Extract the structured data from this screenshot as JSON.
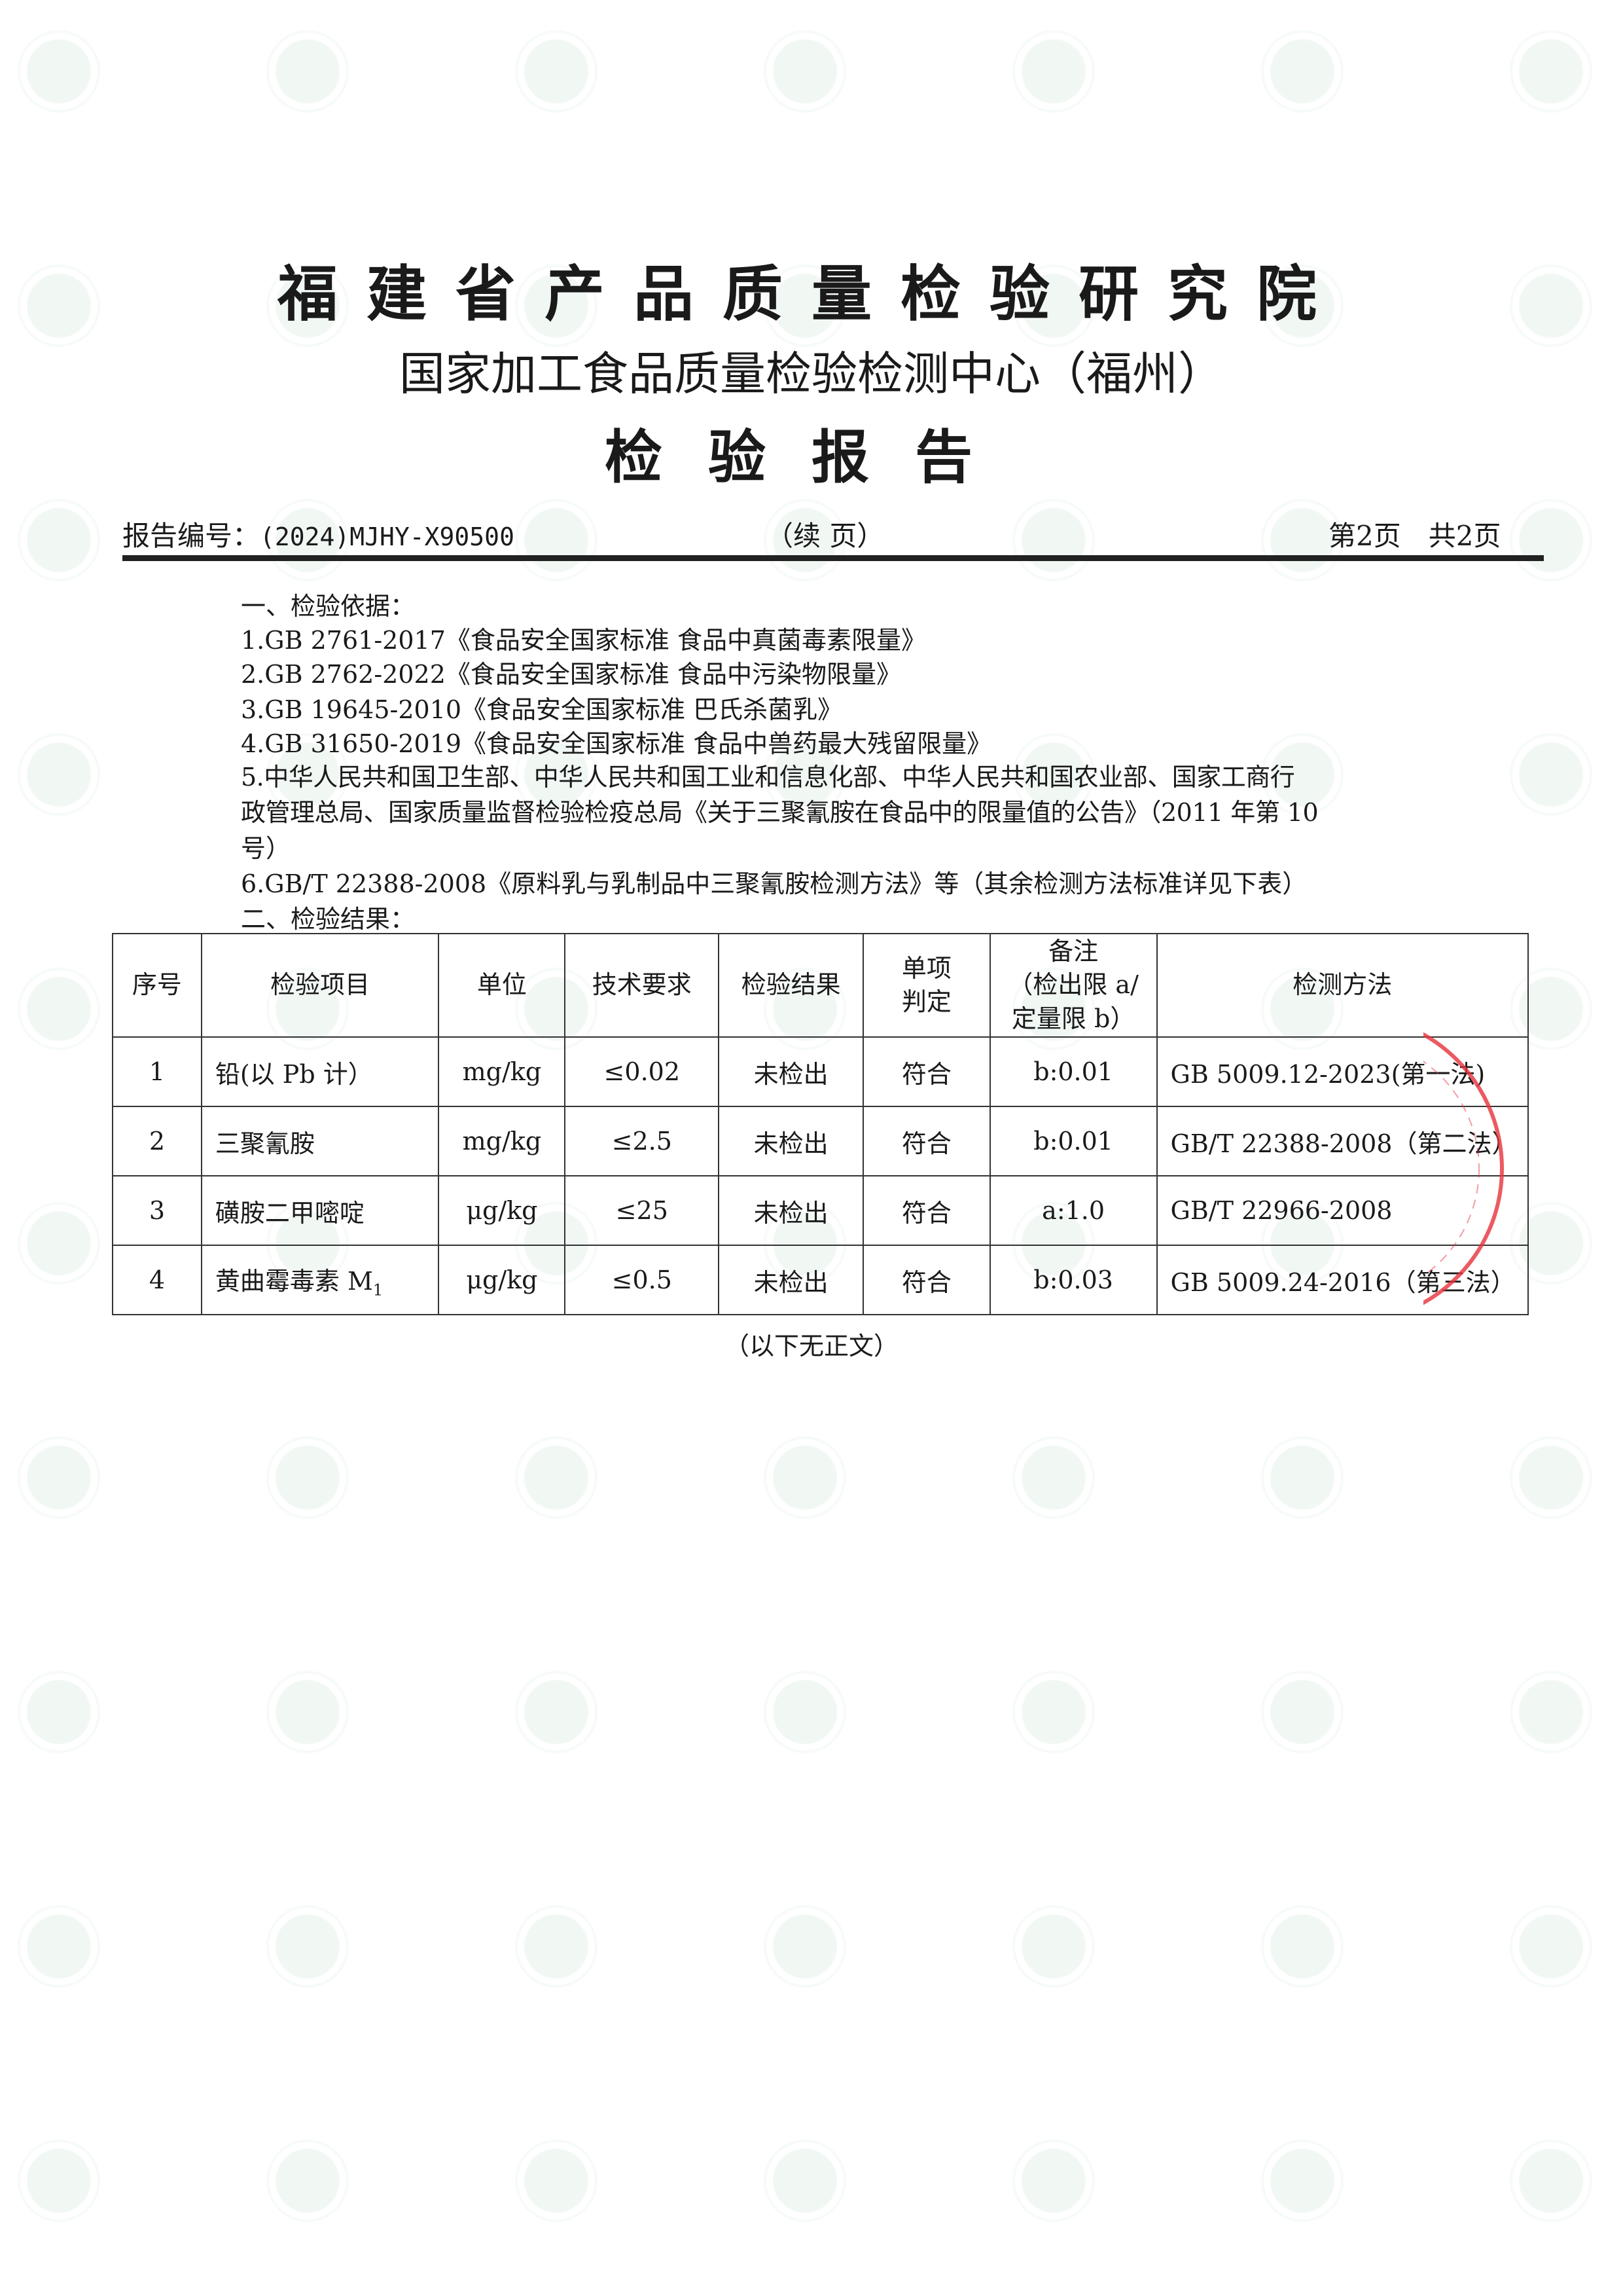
{
  "header": {
    "org_name": "福建省产品质量检验研究院",
    "center_name": "国家加工食品质量检验检测中心（福州）",
    "doc_title": "检验报告",
    "report_no_label": "报告编号：",
    "report_no": "(2024)MJHY-X90500",
    "continued": "（续 页）",
    "page_info": "第2页　共2页"
  },
  "basis": {
    "heading": "一、检验依据：",
    "lines": [
      "1.GB 2761-2017《食品安全国家标准  食品中真菌毒素限量》",
      "2.GB 2762-2022《食品安全国家标准  食品中污染物限量》",
      "3.GB 19645-2010《食品安全国家标准  巴氏杀菌乳》",
      "4.GB 31650-2019《食品安全国家标准  食品中兽药最大残留限量》",
      "5.中华人民共和国卫生部、中华人民共和国工业和信息化部、中华人民共和国农业部、国家工商行",
      "政管理总局、国家质量监督检验检疫总局《关于三聚氰胺在食品中的限量值的公告》（2011 年第 10",
      "号）",
      "6.GB/T 22388-2008《原料乳与乳制品中三聚氰胺检测方法》等（其余检测方法标准详见下表）"
    ]
  },
  "results": {
    "heading": "二、检验结果：",
    "columns": [
      "序号",
      "检验项目",
      "单位",
      "技术要求",
      "检验结果",
      "单项判定",
      "备注（检出限 a/定量限 b）",
      "检测方法"
    ],
    "column_display": {
      "judge": [
        "单项",
        "判定"
      ],
      "remark": [
        "备注",
        "（检出限 a/",
        "定量限 b）"
      ]
    },
    "rows": [
      {
        "no": "1",
        "item": "铅(以 Pb 计）",
        "unit": "mg/kg",
        "req": "≤0.02",
        "result": "未检出",
        "judge": "符合",
        "remark": "b:0.01",
        "method": "GB 5009.12-2023(第一法)"
      },
      {
        "no": "2",
        "item": "三聚氰胺",
        "unit": "mg/kg",
        "req": "≤2.5",
        "result": "未检出",
        "judge": "符合",
        "remark": "b:0.01",
        "method": "GB/T 22388-2008（第二法）"
      },
      {
        "no": "3",
        "item": "磺胺二甲嘧啶",
        "unit": "μg/kg",
        "req": "≤25",
        "result": "未检出",
        "judge": "符合",
        "remark": "a:1.0",
        "method": "GB/T 22966-2008"
      },
      {
        "no": "4",
        "item": "黄曲霉毒素 M",
        "item_sub": "1",
        "unit": "μg/kg",
        "req": "≤0.5",
        "result": "未检出",
        "judge": "符合",
        "remark": "b:0.03",
        "method": "GB 5009.24-2016（第三法）"
      }
    ],
    "end_note": "（以下无正文）"
  },
  "colors": {
    "seal": "#e8323c",
    "watermark": "#78be96",
    "text": "#1a1a1a"
  }
}
